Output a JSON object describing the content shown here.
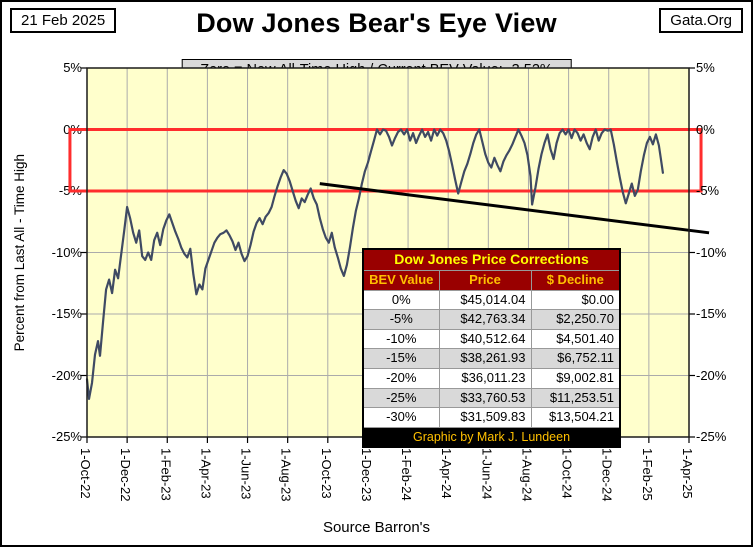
{
  "header": {
    "date": "21 Feb 2025",
    "brand": "Gata.Org",
    "title": "Dow Jones Bear's Eye View",
    "subtitle": "Zero = New All-Time High / Current BEV Value:  -3.52%"
  },
  "source": "Source Barron's",
  "chart_data": {
    "type": "line",
    "title": "Dow Jones Bear's Eye View",
    "ylabel": "Percent from  Last All - Time  High",
    "ylim": [
      -25,
      5
    ],
    "grid": true,
    "y_tick_labels": [
      "5%",
      "0%",
      "-5%",
      "-10%",
      "-15%",
      "-20%",
      "-25%"
    ],
    "y_tick_values": [
      5,
      0,
      -5,
      -10,
      -15,
      -20,
      -25
    ],
    "x_tick_labels": [
      "1-Oct-22",
      "1-Dec-22",
      "1-Feb-23",
      "1-Apr-23",
      "1-Jun-23",
      "1-Aug-23",
      "1-Oct-23",
      "1-Dec-23",
      "1-Feb-24",
      "1-Apr-24",
      "1-Jun-24",
      "1-Aug-24",
      "1-Oct-24",
      "1-Dec-24",
      "1-Feb-25",
      "1-Apr-25"
    ],
    "x_tick_months": [
      0,
      2,
      4,
      6,
      8,
      10,
      12,
      14,
      16,
      18,
      20,
      22,
      24,
      26,
      28,
      30
    ],
    "x_unit": "months since 1-Oct-2022",
    "x_range_months": [
      0,
      30
    ],
    "current_bev": "-3.52%",
    "series": [
      {
        "name": "Dow Jones BEV (% from last all-time high)",
        "color": "#3F4A63",
        "points": [
          [
            0.0,
            -20.3
          ],
          [
            0.1,
            -21.9
          ],
          [
            0.25,
            -20.6
          ],
          [
            0.4,
            -18.3
          ],
          [
            0.55,
            -17.2
          ],
          [
            0.65,
            -18.4
          ],
          [
            0.8,
            -15.6
          ],
          [
            0.95,
            -13.0
          ],
          [
            1.1,
            -12.2
          ],
          [
            1.25,
            -13.3
          ],
          [
            1.4,
            -11.4
          ],
          [
            1.55,
            -12.1
          ],
          [
            1.7,
            -10.2
          ],
          [
            1.85,
            -8.3
          ],
          [
            2.0,
            -6.3
          ],
          [
            2.15,
            -7.2
          ],
          [
            2.3,
            -8.4
          ],
          [
            2.45,
            -9.2
          ],
          [
            2.6,
            -8.2
          ],
          [
            2.75,
            -10.3
          ],
          [
            2.9,
            -10.6
          ],
          [
            3.05,
            -10.0
          ],
          [
            3.2,
            -10.6
          ],
          [
            3.35,
            -9.0
          ],
          [
            3.5,
            -8.4
          ],
          [
            3.65,
            -9.4
          ],
          [
            3.8,
            -8.1
          ],
          [
            3.95,
            -7.4
          ],
          [
            4.1,
            -6.9
          ],
          [
            4.25,
            -7.6
          ],
          [
            4.4,
            -8.3
          ],
          [
            4.55,
            -8.9
          ],
          [
            4.7,
            -9.6
          ],
          [
            4.85,
            -10.1
          ],
          [
            5.0,
            -10.4
          ],
          [
            5.15,
            -9.7
          ],
          [
            5.3,
            -11.8
          ],
          [
            5.45,
            -13.4
          ],
          [
            5.6,
            -12.6
          ],
          [
            5.75,
            -13.0
          ],
          [
            5.9,
            -11.3
          ],
          [
            6.05,
            -10.6
          ],
          [
            6.2,
            -9.9
          ],
          [
            6.35,
            -9.2
          ],
          [
            6.5,
            -8.8
          ],
          [
            6.65,
            -8.5
          ],
          [
            6.8,
            -8.4
          ],
          [
            6.95,
            -8.2
          ],
          [
            7.1,
            -8.6
          ],
          [
            7.25,
            -9.1
          ],
          [
            7.4,
            -9.8
          ],
          [
            7.55,
            -9.2
          ],
          [
            7.7,
            -10.1
          ],
          [
            7.85,
            -10.7
          ],
          [
            8.0,
            -10.3
          ],
          [
            8.15,
            -9.4
          ],
          [
            8.3,
            -8.3
          ],
          [
            8.45,
            -7.6
          ],
          [
            8.6,
            -7.2
          ],
          [
            8.75,
            -7.7
          ],
          [
            8.9,
            -7.1
          ],
          [
            9.05,
            -6.8
          ],
          [
            9.2,
            -6.3
          ],
          [
            9.35,
            -5.4
          ],
          [
            9.5,
            -4.6
          ],
          [
            9.65,
            -3.9
          ],
          [
            9.8,
            -3.3
          ],
          [
            9.95,
            -3.6
          ],
          [
            10.1,
            -4.2
          ],
          [
            10.25,
            -5.0
          ],
          [
            10.4,
            -5.8
          ],
          [
            10.55,
            -6.4
          ],
          [
            10.7,
            -5.6
          ],
          [
            10.85,
            -5.9
          ],
          [
            11.0,
            -5.3
          ],
          [
            11.15,
            -4.8
          ],
          [
            11.3,
            -5.6
          ],
          [
            11.45,
            -6.1
          ],
          [
            11.6,
            -7.2
          ],
          [
            11.75,
            -8.1
          ],
          [
            11.9,
            -8.8
          ],
          [
            12.05,
            -9.2
          ],
          [
            12.2,
            -8.4
          ],
          [
            12.35,
            -9.6
          ],
          [
            12.5,
            -10.4
          ],
          [
            12.65,
            -11.3
          ],
          [
            12.8,
            -11.9
          ],
          [
            12.95,
            -11.0
          ],
          [
            13.1,
            -9.6
          ],
          [
            13.25,
            -8.0
          ],
          [
            13.4,
            -6.6
          ],
          [
            13.55,
            -5.6
          ],
          [
            13.7,
            -4.4
          ],
          [
            13.85,
            -3.4
          ],
          [
            14.0,
            -2.7
          ],
          [
            14.15,
            -1.8
          ],
          [
            14.3,
            -0.9
          ],
          [
            14.45,
            0.0
          ],
          [
            14.6,
            -0.4
          ],
          [
            14.75,
            0.0
          ],
          [
            14.9,
            -0.1
          ],
          [
            15.05,
            -0.6
          ],
          [
            15.2,
            -1.3
          ],
          [
            15.35,
            -0.7
          ],
          [
            15.5,
            -0.2
          ],
          [
            15.65,
            0.0
          ],
          [
            15.8,
            -0.4
          ],
          [
            15.95,
            0.0
          ],
          [
            16.1,
            -0.9
          ],
          [
            16.25,
            -0.3
          ],
          [
            16.4,
            -1.1
          ],
          [
            16.55,
            -0.5
          ],
          [
            16.7,
            0.0
          ],
          [
            16.85,
            -0.6
          ],
          [
            17.0,
            -0.2
          ],
          [
            17.15,
            -0.9
          ],
          [
            17.3,
            0.0
          ],
          [
            17.45,
            -0.5
          ],
          [
            17.6,
            0.0
          ],
          [
            17.75,
            -0.3
          ],
          [
            17.9,
            -0.9
          ],
          [
            18.05,
            -1.8
          ],
          [
            18.2,
            -2.9
          ],
          [
            18.35,
            -4.1
          ],
          [
            18.5,
            -5.2
          ],
          [
            18.65,
            -4.3
          ],
          [
            18.8,
            -3.4
          ],
          [
            18.95,
            -2.8
          ],
          [
            19.1,
            -2.0
          ],
          [
            19.25,
            -1.1
          ],
          [
            19.4,
            -0.4
          ],
          [
            19.55,
            0.0
          ],
          [
            19.7,
            -1.0
          ],
          [
            19.85,
            -2.0
          ],
          [
            20.0,
            -2.7
          ],
          [
            20.15,
            -3.1
          ],
          [
            20.3,
            -2.3
          ],
          [
            20.45,
            -2.9
          ],
          [
            20.6,
            -3.4
          ],
          [
            20.75,
            -2.6
          ],
          [
            20.9,
            -2.1
          ],
          [
            21.05,
            -1.7
          ],
          [
            21.2,
            -1.2
          ],
          [
            21.35,
            -0.6
          ],
          [
            21.5,
            0.0
          ],
          [
            21.65,
            -0.5
          ],
          [
            21.8,
            -1.1
          ],
          [
            21.95,
            -2.1
          ],
          [
            22.1,
            -3.8
          ],
          [
            22.18,
            -6.1
          ],
          [
            22.35,
            -4.7
          ],
          [
            22.5,
            -3.2
          ],
          [
            22.65,
            -2.0
          ],
          [
            22.8,
            -1.1
          ],
          [
            22.95,
            -0.4
          ],
          [
            23.1,
            -1.6
          ],
          [
            23.25,
            -2.4
          ],
          [
            23.4,
            -1.1
          ],
          [
            23.55,
            -0.3
          ],
          [
            23.7,
            0.0
          ],
          [
            23.85,
            -0.4
          ],
          [
            24.0,
            0.0
          ],
          [
            24.15,
            -0.7
          ],
          [
            24.3,
            0.0
          ],
          [
            24.45,
            -0.3
          ],
          [
            24.6,
            -0.9
          ],
          [
            24.75,
            -0.4
          ],
          [
            24.9,
            -1.1
          ],
          [
            25.05,
            -1.6
          ],
          [
            25.2,
            -0.6
          ],
          [
            25.35,
            0.0
          ],
          [
            25.5,
            -0.9
          ],
          [
            25.65,
            -0.3
          ],
          [
            25.8,
            0.0
          ],
          [
            25.95,
            -0.1
          ],
          [
            26.1,
            0.0
          ],
          [
            26.25,
            -1.2
          ],
          [
            26.4,
            -2.6
          ],
          [
            26.55,
            -3.9
          ],
          [
            26.7,
            -5.1
          ],
          [
            26.85,
            -6.0
          ],
          [
            27.0,
            -5.2
          ],
          [
            27.15,
            -4.4
          ],
          [
            27.3,
            -5.4
          ],
          [
            27.45,
            -4.9
          ],
          [
            27.6,
            -3.4
          ],
          [
            27.75,
            -2.1
          ],
          [
            27.9,
            -1.1
          ],
          [
            28.05,
            -0.6
          ],
          [
            28.2,
            -1.2
          ],
          [
            28.35,
            -0.4
          ],
          [
            28.5,
            -1.3
          ],
          [
            28.6,
            -2.4
          ],
          [
            28.7,
            -3.52
          ]
        ]
      }
    ],
    "annotations": {
      "red_box": {
        "x_from": -0.85,
        "x_to": 30.6,
        "y_top": 0,
        "y_bottom": -5,
        "color": "#FF2D2D"
      },
      "trend_line": {
        "from": [
          11.6,
          -4.4
        ],
        "to": [
          31.0,
          -8.4
        ],
        "color": "#000000"
      }
    }
  },
  "table": {
    "title": "Dow Jones Price Corrections",
    "columns": [
      "BEV Value",
      "Price",
      "$ Decline"
    ],
    "rows": [
      [
        "0%",
        "$45,014.04",
        "$0.00"
      ],
      [
        "-5%",
        "$42,763.34",
        "$2,250.70"
      ],
      [
        "-10%",
        "$40,512.64",
        "$4,501.40"
      ],
      [
        "-15%",
        "$38,261.93",
        "$6,752.11"
      ],
      [
        "-20%",
        "$36,011.23",
        "$9,002.81"
      ],
      [
        "-25%",
        "$33,760.53",
        "$11,253.51"
      ],
      [
        "-30%",
        "$31,509.83",
        "$13,504.21"
      ]
    ],
    "footer": "Graphic by Mark J. Lundeen"
  },
  "colors": {
    "plot_bg": "#FFFFCC",
    "line": "#3F4A63",
    "red_box": "#FF2D2D",
    "trend": "#000000",
    "grid": "#ABABAB",
    "plot_border": "#1A1A1A",
    "table_header_bg": "#990000",
    "table_title_text": "#FFFF00",
    "table_header_text": "#FFC000",
    "row_alt": "#D9D9D9",
    "footer_bg": "#000000"
  }
}
